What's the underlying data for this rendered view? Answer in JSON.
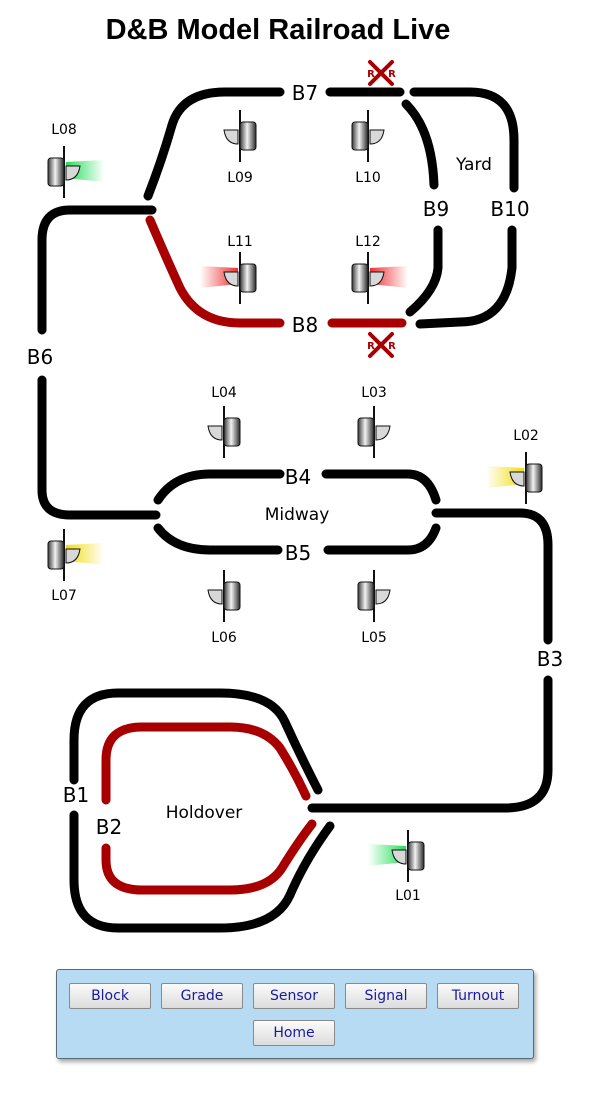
{
  "title": "D&B Model Railroad Live",
  "colors": {
    "track": "#000000",
    "occupied": "#a80000",
    "signal_green": "#22dd55",
    "signal_yellow": "#f0dd10",
    "signal_red": "#ee3030",
    "crossing": "#a80000",
    "panel": "#b7dbf3"
  },
  "blocks": {
    "B1": "B1",
    "B2": "B2",
    "B3": "B3",
    "B4": "B4",
    "B5": "B5",
    "B6": "B6",
    "B7": "B7",
    "B8": "B8",
    "B9": "B9",
    "B10": "B10"
  },
  "signals": {
    "L01": {
      "label": "L01",
      "aspect": "green"
    },
    "L02": {
      "label": "L02",
      "aspect": "yellow"
    },
    "L03": {
      "label": "L03",
      "aspect": "none"
    },
    "L04": {
      "label": "L04",
      "aspect": "none"
    },
    "L05": {
      "label": "L05",
      "aspect": "none"
    },
    "L06": {
      "label": "L06",
      "aspect": "none"
    },
    "L07": {
      "label": "L07",
      "aspect": "yellow"
    },
    "L08": {
      "label": "L08",
      "aspect": "green"
    },
    "L09": {
      "label": "L09",
      "aspect": "none"
    },
    "L10": {
      "label": "L10",
      "aspect": "none"
    },
    "L11": {
      "label": "L11",
      "aspect": "red"
    },
    "L12": {
      "label": "L12",
      "aspect": "red"
    }
  },
  "areas": {
    "yard": "Yard",
    "midway": "Midway",
    "holdover": "Holdover"
  },
  "crossing_sign": {
    "letter_left": "R",
    "letter_right": "R"
  },
  "occupied_blocks": [
    "B2",
    "B8"
  ],
  "buttons": {
    "block": "Block",
    "grade": "Grade",
    "sensor": "Sensor",
    "signal": "Signal",
    "turnout": "Turnout",
    "home": "Home"
  }
}
